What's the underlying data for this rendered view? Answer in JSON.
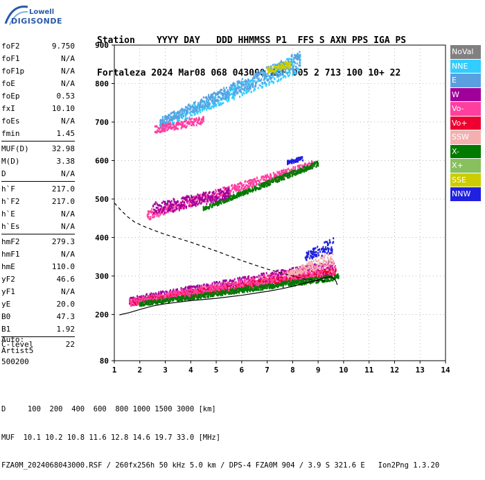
{
  "logo": {
    "top": "Lowell",
    "bottom": "DIGISONDE"
  },
  "header": {
    "row1": "Station    YYYY DAY   DDD HHMMSS P1  FFS S AXN PPS IGA PS",
    "row2": "Fortaleza 2024 Mar08 068 043000 RSF 005 2 713 100 10+ 22"
  },
  "params": {
    "group1": [
      {
        "k": "foF2",
        "v": "9.750"
      },
      {
        "k": "foF1",
        "v": "N/A"
      },
      {
        "k": "foF1p",
        "v": "N/A"
      },
      {
        "k": "foE",
        "v": "N/A"
      },
      {
        "k": "foEp",
        "v": "0.53"
      },
      {
        "k": "fxI",
        "v": "10.10"
      },
      {
        "k": "foEs",
        "v": "N/A"
      },
      {
        "k": "fmin",
        "v": "1.45"
      }
    ],
    "group2": [
      {
        "k": "MUF(D)",
        "v": "32.98"
      },
      {
        "k": "M(D)",
        "v": "3.38"
      },
      {
        "k": "D",
        "v": "N/A"
      }
    ],
    "group3": [
      {
        "k": "h`F",
        "v": "217.0"
      },
      {
        "k": "h`F2",
        "v": "217.0"
      },
      {
        "k": "h`E",
        "v": "N/A"
      },
      {
        "k": "h`Es",
        "v": "N/A"
      }
    ],
    "group4": [
      {
        "k": "hmF2",
        "v": "279.3"
      },
      {
        "k": "hmF1",
        "v": "N/A"
      },
      {
        "k": "hmE",
        "v": "110.0"
      },
      {
        "k": "yF2",
        "v": "46.6"
      },
      {
        "k": "yF1",
        "v": "N/A"
      },
      {
        "k": "yE",
        "v": "20.0"
      },
      {
        "k": "B0",
        "v": "47.3"
      },
      {
        "k": "B1",
        "v": "1.92"
      }
    ],
    "group5": [
      {
        "k": "C-level",
        "v": "22"
      }
    ]
  },
  "auto": {
    "line1": "Auto:",
    "line2": "Artist5",
    "line3": "500200"
  },
  "legend": [
    {
      "label": "NoVal",
      "color": "#808080"
    },
    {
      "label": "NNE",
      "color": "#33ccff"
    },
    {
      "label": "E",
      "color": "#5aa0e0"
    },
    {
      "label": "W",
      "color": "#a0009a"
    },
    {
      "label": "Vo-",
      "color": "#ff3fa0"
    },
    {
      "label": "Vo+",
      "color": "#ee0030"
    },
    {
      "label": "SSW",
      "color": "#f4b0b0"
    },
    {
      "label": "X-",
      "color": "#007a00"
    },
    {
      "label": "X+",
      "color": "#88c060"
    },
    {
      "label": "SSE",
      "color": "#cccc00"
    },
    {
      "label": "NNW",
      "color": "#2020e0"
    }
  ],
  "footer": {
    "line1": "D     100  200  400  600  800 1000 1500 3000 [km]",
    "line2": "MUF  10.1 10.2 10.8 11.6 12.8 14.6 19.7 33.0 [MHz]",
    "line3": "FZA0M_2024068043000.RSF / 260fx256h 50 kHz 5.0 km / DPS-4 FZA0M 904 / 3.9 S 321.6 E   Ion2Png 1.3.20"
  },
  "chart_data": {
    "type": "scatter",
    "xlim": [
      1,
      14
    ],
    "ylim": [
      80,
      900
    ],
    "xticks": [
      1,
      2,
      3,
      4,
      5,
      6,
      7,
      8,
      9,
      10,
      11,
      12,
      13,
      14
    ],
    "yticks": [
      80,
      200,
      300,
      400,
      500,
      600,
      700,
      800,
      900
    ],
    "grid": true,
    "traces": [
      {
        "name": "solid",
        "style": "solid",
        "x": [
          1.2,
          1.6,
          2.0,
          2.5,
          3.0,
          3.5,
          4.0,
          5.0,
          6.0,
          7.0,
          7.5,
          8.0,
          8.5,
          9.0,
          9.3,
          9.5,
          9.65,
          9.72,
          9.75
        ],
        "y": [
          199,
          205,
          213,
          222,
          228,
          232,
          236,
          242,
          250,
          260,
          266,
          273,
          282,
          290,
          296,
          298,
          292,
          284,
          277
        ]
      },
      {
        "name": "dashed",
        "style": "dashed",
        "x": [
          1.0,
          1.2,
          1.5,
          1.8,
          2.2,
          2.5,
          3.0,
          3.5,
          4.0,
          5.0,
          6.0,
          7.0,
          8.0,
          8.5,
          9.0,
          9.4
        ],
        "y": [
          490,
          475,
          455,
          440,
          428,
          420,
          408,
          398,
          388,
          365,
          340,
          318,
          300,
          292,
          288,
          286
        ]
      }
    ],
    "echo_bands": [
      {
        "color": "#a0009a",
        "x": [
          1.6,
          9.6
        ],
        "y0": [
          225,
          300
        ],
        "y1": [
          245,
          340
        ]
      },
      {
        "color": "#ee0030",
        "x": [
          1.6,
          9.7
        ],
        "y0": [
          222,
          300
        ],
        "y1": [
          238,
          320
        ]
      },
      {
        "color": "#ff3fa0",
        "x": [
          1.6,
          9.7
        ],
        "y0": [
          222,
          295
        ],
        "y1": [
          240,
          335
        ]
      },
      {
        "color": "#007a00",
        "x": [
          2.0,
          9.8
        ],
        "y0": [
          222,
          290
        ],
        "y1": [
          232,
          305
        ]
      },
      {
        "color": "#f4b0b0",
        "x": [
          7.8,
          9.6
        ],
        "y0": [
          295,
          330
        ],
        "y1": [
          310,
          365
        ]
      },
      {
        "color": "#ff3fa0",
        "x": [
          2.3,
          8.8
        ],
        "y0": [
          445,
          580
        ],
        "y1": [
          470,
          600
        ]
      },
      {
        "color": "#007a00",
        "x": [
          4.5,
          9.0
        ],
        "y0": [
          470,
          585
        ],
        "y1": [
          480,
          600
        ]
      },
      {
        "color": "#a0009a",
        "x": [
          2.5,
          5.5
        ],
        "y0": [
          455,
          500
        ],
        "y1": [
          490,
          530
        ]
      },
      {
        "color": "#33ccff",
        "x": [
          2.8,
          8.3
        ],
        "y0": [
          680,
          830
        ],
        "y1": [
          705,
          880
        ]
      },
      {
        "color": "#5aa0e0",
        "x": [
          2.8,
          8.3
        ],
        "y0": [
          690,
          840
        ],
        "y1": [
          710,
          885
        ]
      },
      {
        "color": "#ff3fa0",
        "x": [
          2.6,
          4.5
        ],
        "y0": [
          670,
          695
        ],
        "y1": [
          690,
          715
        ]
      },
      {
        "color": "#cccc00",
        "x": [
          7.0,
          7.9
        ],
        "y0": [
          825,
          840
        ],
        "y1": [
          840,
          860
        ]
      },
      {
        "color": "#2020e0",
        "x": [
          8.5,
          9.6
        ],
        "y0": [
          340,
          360
        ],
        "y1": [
          360,
          400
        ]
      },
      {
        "color": "#2020e0",
        "x": [
          7.8,
          8.4
        ],
        "y0": [
          590,
          600
        ],
        "y1": [
          600,
          610
        ]
      }
    ]
  }
}
